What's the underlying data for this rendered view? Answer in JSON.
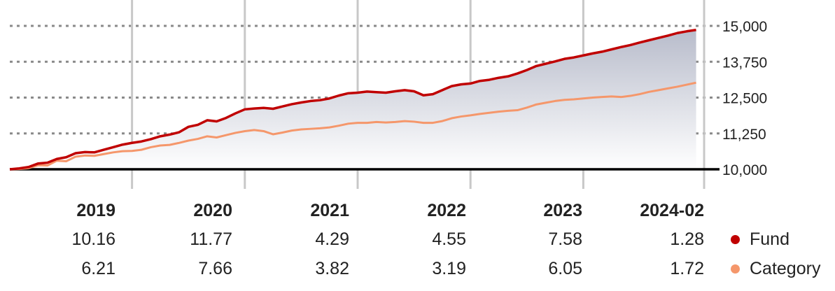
{
  "chart_data": {
    "type": "area",
    "title": "",
    "xlabel": "",
    "ylabel": "",
    "ylim": [
      10000,
      15000
    ],
    "y_ticks": [
      "15,000",
      "13,750",
      "12,500",
      "11,250",
      "10,000"
    ],
    "grid": true,
    "x_range": [
      "2018-01",
      "2024-03"
    ],
    "x_ticks": [
      "2019",
      "2020",
      "2021",
      "2022",
      "2023"
    ],
    "series": [
      {
        "name": "Fund",
        "color": "#c00000",
        "x": [
          "2018-01",
          "2018-02",
          "2018-03",
          "2018-04",
          "2018-05",
          "2018-06",
          "2018-07",
          "2018-08",
          "2018-09",
          "2018-10",
          "2018-11",
          "2018-12",
          "2019-01",
          "2019-02",
          "2019-03",
          "2019-04",
          "2019-05",
          "2019-06",
          "2019-07",
          "2019-08",
          "2019-09",
          "2019-10",
          "2019-11",
          "2019-12",
          "2020-01",
          "2020-02",
          "2020-03",
          "2020-04",
          "2020-05",
          "2020-06",
          "2020-07",
          "2020-08",
          "2020-09",
          "2020-10",
          "2020-11",
          "2020-12",
          "2021-01",
          "2021-02",
          "2021-03",
          "2021-04",
          "2021-05",
          "2021-06",
          "2021-07",
          "2021-08",
          "2021-09",
          "2021-10",
          "2021-11",
          "2021-12",
          "2022-01",
          "2022-02",
          "2022-03",
          "2022-04",
          "2022-05",
          "2022-06",
          "2022-07",
          "2022-08",
          "2022-09",
          "2022-10",
          "2022-11",
          "2022-12",
          "2023-01",
          "2023-02",
          "2023-03",
          "2023-04",
          "2023-05",
          "2023-06",
          "2023-07",
          "2023-08",
          "2023-09",
          "2023-10",
          "2023-11",
          "2023-12",
          "2024-01",
          "2024-02"
        ],
        "values": [
          10000,
          10030,
          10080,
          10200,
          10230,
          10360,
          10420,
          10560,
          10600,
          10590,
          10680,
          10770,
          10860,
          10920,
          10970,
          11050,
          11150,
          11210,
          11290,
          11480,
          11550,
          11710,
          11670,
          11790,
          11950,
          12090,
          12120,
          12140,
          12110,
          12190,
          12270,
          12330,
          12380,
          12410,
          12470,
          12570,
          12650,
          12670,
          12710,
          12690,
          12670,
          12720,
          12760,
          12720,
          12580,
          12620,
          12760,
          12900,
          12960,
          12990,
          13080,
          13120,
          13190,
          13240,
          13340,
          13460,
          13600,
          13680,
          13760,
          13850,
          13900,
          13970,
          14040,
          14100,
          14180,
          14260,
          14330,
          14420,
          14500,
          14580,
          14660,
          14750,
          14810,
          14860
        ]
      },
      {
        "name": "Category",
        "color": "#f5976b",
        "x": [
          "2018-01",
          "2018-02",
          "2018-03",
          "2018-04",
          "2018-05",
          "2018-06",
          "2018-07",
          "2018-08",
          "2018-09",
          "2018-10",
          "2018-11",
          "2018-12",
          "2019-01",
          "2019-02",
          "2019-03",
          "2019-04",
          "2019-05",
          "2019-06",
          "2019-07",
          "2019-08",
          "2019-09",
          "2019-10",
          "2019-11",
          "2019-12",
          "2020-01",
          "2020-02",
          "2020-03",
          "2020-04",
          "2020-05",
          "2020-06",
          "2020-07",
          "2020-08",
          "2020-09",
          "2020-10",
          "2020-11",
          "2020-12",
          "2021-01",
          "2021-02",
          "2021-03",
          "2021-04",
          "2021-05",
          "2021-06",
          "2021-07",
          "2021-08",
          "2021-09",
          "2021-10",
          "2021-11",
          "2021-12",
          "2022-01",
          "2022-02",
          "2022-03",
          "2022-04",
          "2022-05",
          "2022-06",
          "2022-07",
          "2022-08",
          "2022-09",
          "2022-10",
          "2022-11",
          "2022-12",
          "2023-01",
          "2023-02",
          "2023-03",
          "2023-04",
          "2023-05",
          "2023-06",
          "2023-07",
          "2023-08",
          "2023-09",
          "2023-10",
          "2023-11",
          "2023-12",
          "2024-01",
          "2024-02"
        ],
        "values": [
          10000,
          10010,
          10040,
          10140,
          10130,
          10300,
          10280,
          10440,
          10480,
          10470,
          10530,
          10590,
          10630,
          10640,
          10680,
          10770,
          10830,
          10850,
          10920,
          11000,
          11060,
          11150,
          11110,
          11190,
          11270,
          11330,
          11370,
          11330,
          11220,
          11280,
          11350,
          11390,
          11410,
          11430,
          11460,
          11520,
          11590,
          11620,
          11620,
          11650,
          11630,
          11650,
          11680,
          11660,
          11620,
          11620,
          11680,
          11780,
          11840,
          11880,
          11930,
          11970,
          12010,
          12040,
          12060,
          12150,
          12260,
          12320,
          12380,
          12420,
          12440,
          12470,
          12500,
          12520,
          12540,
          12520,
          12560,
          12620,
          12700,
          12760,
          12820,
          12880,
          12950,
          13020
        ]
      }
    ],
    "table": {
      "years": [
        "2019",
        "2020",
        "2021",
        "2022",
        "2023",
        "2024-02"
      ],
      "rows": [
        {
          "name": "Fund",
          "color": "#c00000",
          "values": [
            "10.16",
            "11.77",
            "4.29",
            "4.55",
            "7.58",
            "1.28"
          ]
        },
        {
          "name": "Category",
          "color": "#f5976b",
          "values": [
            "6.21",
            "7.66",
            "3.82",
            "3.19",
            "6.05",
            "1.72"
          ]
        }
      ]
    }
  }
}
